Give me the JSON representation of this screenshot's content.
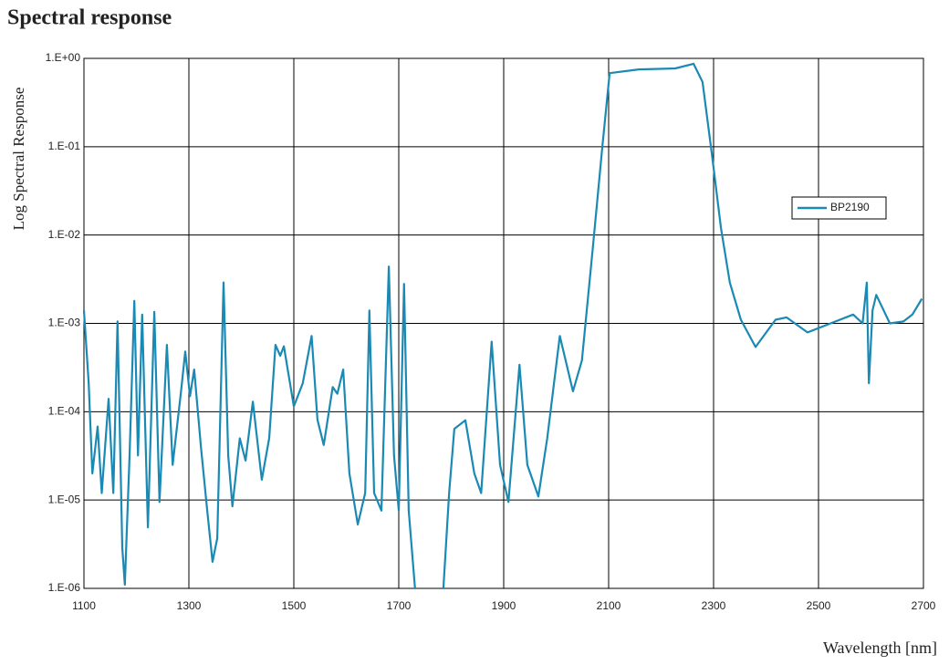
{
  "chart_data": {
    "type": "line",
    "title": "Spectral response",
    "y_label": "Log Spectral Response",
    "x_label": "Wavelength [nm]",
    "xlim": [
      1100,
      2700
    ],
    "xticks": [
      1100,
      1300,
      1500,
      1700,
      1900,
      2100,
      2300,
      2500,
      2700
    ],
    "ylim": [
      1e-06,
      1
    ],
    "log_y": true,
    "grid": true,
    "legend": "right",
    "yticks": [
      {
        "value": 1,
        "label": "1.E+00"
      },
      {
        "value": 0.1,
        "label": "1.E-01"
      },
      {
        "value": 0.01,
        "label": "1.E-02"
      },
      {
        "value": 0.001,
        "label": "1.E-03"
      },
      {
        "value": 0.0001,
        "label": "1.E-04"
      },
      {
        "value": 1e-05,
        "label": "1.E-05"
      },
      {
        "value": 1e-06,
        "label": "1.E-06"
      }
    ],
    "x": [
      1100,
      1109,
      1116,
      1126,
      1134,
      1147,
      1156,
      1164,
      1173,
      1178,
      1187,
      1196,
      1203,
      1211,
      1222,
      1234,
      1244,
      1258,
      1269,
      1285,
      1293,
      1302,
      1310,
      1323,
      1335,
      1345,
      1354,
      1366,
      1375,
      1383,
      1397,
      1408,
      1422,
      1439,
      1453,
      1465,
      1474,
      1481,
      1500,
      1517,
      1534,
      1545,
      1557,
      1574,
      1583,
      1594,
      1606,
      1622,
      1636,
      1644,
      1653,
      1667,
      1681,
      1691,
      1700,
      1710,
      1719,
      1731,
      1760,
      1785,
      1796,
      1806,
      1827,
      1844,
      1857,
      1877,
      1893,
      1909,
      1930,
      1945,
      1966,
      1983,
      2007,
      2032,
      2049,
      2070,
      2088,
      2102,
      2157,
      2227,
      2262,
      2279,
      2297,
      2314,
      2331,
      2352,
      2380,
      2418,
      2439,
      2479,
      2523,
      2566,
      2584,
      2592,
      2596,
      2603,
      2610,
      2636,
      2662,
      2679,
      2697
    ],
    "series": [
      {
        "name": "BP2190",
        "color": "#1a8ab5",
        "values": [
          0.0014,
          0.00021,
          2e-05,
          6.8e-05,
          1.2e-05,
          0.00014,
          1.2e-05,
          0.00105,
          2.9e-06,
          1.1e-06,
          3.2e-05,
          0.0018,
          3.2e-05,
          0.00126,
          4.9e-06,
          0.00135,
          9.5e-06,
          0.00057,
          2.5e-05,
          0.00017,
          0.00048,
          0.00015,
          0.0003,
          4e-05,
          7.6e-06,
          2e-06,
          3.7e-06,
          0.0029,
          3.2e-05,
          8.5e-06,
          5e-05,
          2.8e-05,
          0.00013,
          1.7e-05,
          5e-05,
          0.00057,
          0.00043,
          0.00055,
          0.000115,
          0.00021,
          0.00072,
          8.1e-05,
          4.2e-05,
          0.00019,
          0.00016,
          0.0003,
          2e-05,
          5.3e-06,
          1.2e-05,
          0.0014,
          1.2e-05,
          7.6e-06,
          0.0044,
          3.2e-05,
          7.6e-06,
          0.0028,
          7.6e-06,
          1e-06,
          null,
          1e-06,
          1.2e-05,
          6.4e-05,
          8e-05,
          2e-05,
          1.2e-05,
          0.00062,
          2.5e-05,
          9.5e-06,
          0.00034,
          2.5e-05,
          1.1e-05,
          5e-05,
          0.00072,
          0.00017,
          0.00038,
          0.0074,
          0.1,
          0.68,
          0.75,
          0.77,
          0.87,
          0.54,
          0.08,
          0.012,
          0.0029,
          0.0011,
          0.00054,
          0.0011,
          0.00117,
          0.00079,
          0.001,
          0.00126,
          0.001,
          0.0029,
          0.00021,
          0.0014,
          0.0021,
          0.001,
          0.00105,
          0.00126,
          0.0019
        ]
      }
    ]
  }
}
